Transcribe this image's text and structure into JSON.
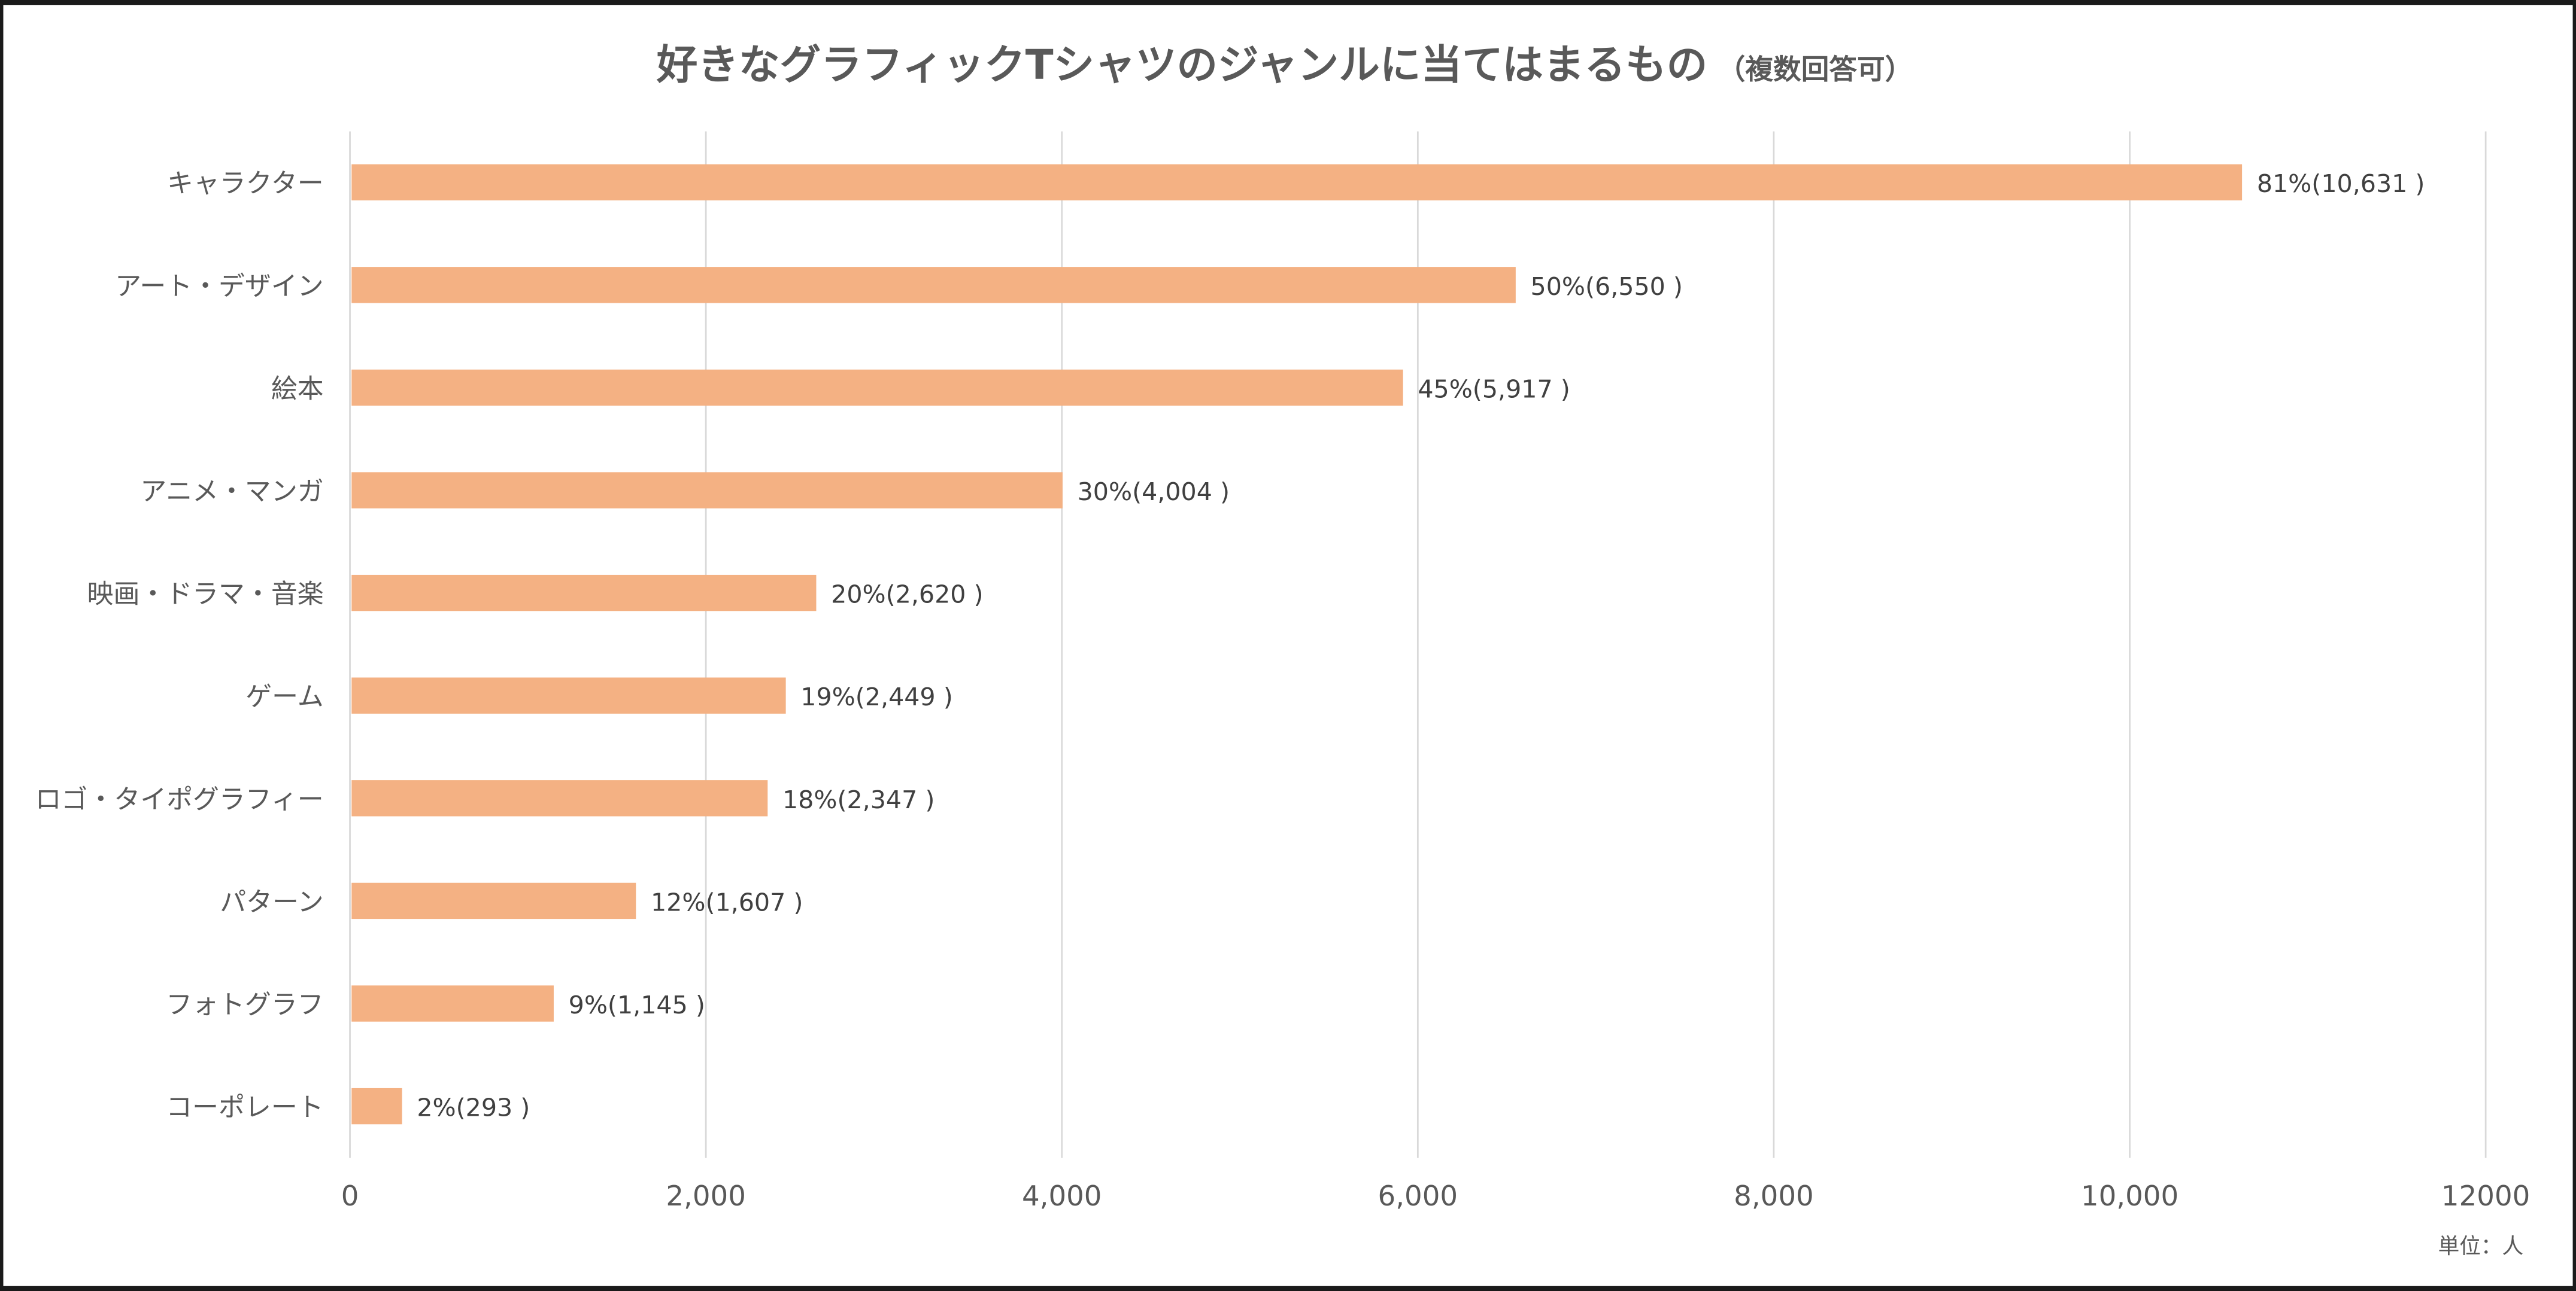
{
  "chart_data": {
    "type": "bar",
    "orientation": "horizontal",
    "title": "好きなグラフィックTシャツのジャンルに当てはまるもの",
    "subtitle": "（複数回答可）",
    "categories": [
      "キャラクター",
      "アート・デザイン",
      "絵本",
      "アニメ・マンガ",
      "映画・ドラマ・音楽",
      "ゲーム",
      "ロゴ・タイポグラフィー",
      "パターン",
      "フォトグラフ",
      "コーポレート"
    ],
    "values": [
      10631,
      6550,
      5917,
      4004,
      2620,
      2449,
      2347,
      1607,
      1145,
      293
    ],
    "percentages": [
      "81%",
      "50%",
      "45%",
      "30%",
      "20%",
      "19%",
      "18%",
      "12%",
      "9%",
      "2%"
    ],
    "data_labels": [
      "81%(10,631 )",
      "50%(6,550 )",
      "45%(5,917 )",
      "30%(4,004 )",
      "20%(2,620 )",
      "19%(2,449 )",
      "18%(2,347 )",
      "12%(1,607 )",
      "9%(1,145 )",
      "2%(293 )"
    ],
    "xlabel": "",
    "ylabel": "",
    "xlim": [
      0,
      12000
    ],
    "x_ticks": [
      0,
      2000,
      4000,
      6000,
      8000,
      10000,
      12000
    ],
    "x_tick_labels": [
      "0",
      "2,000",
      "4,000",
      "6,000",
      "8,000",
      "10,000",
      "12000"
    ],
    "unit_note": "単位：人",
    "grid": true,
    "legend": "none",
    "bar_color": "#f4b183",
    "grid_color": "#d9d9d9",
    "text_color": "#595959"
  }
}
